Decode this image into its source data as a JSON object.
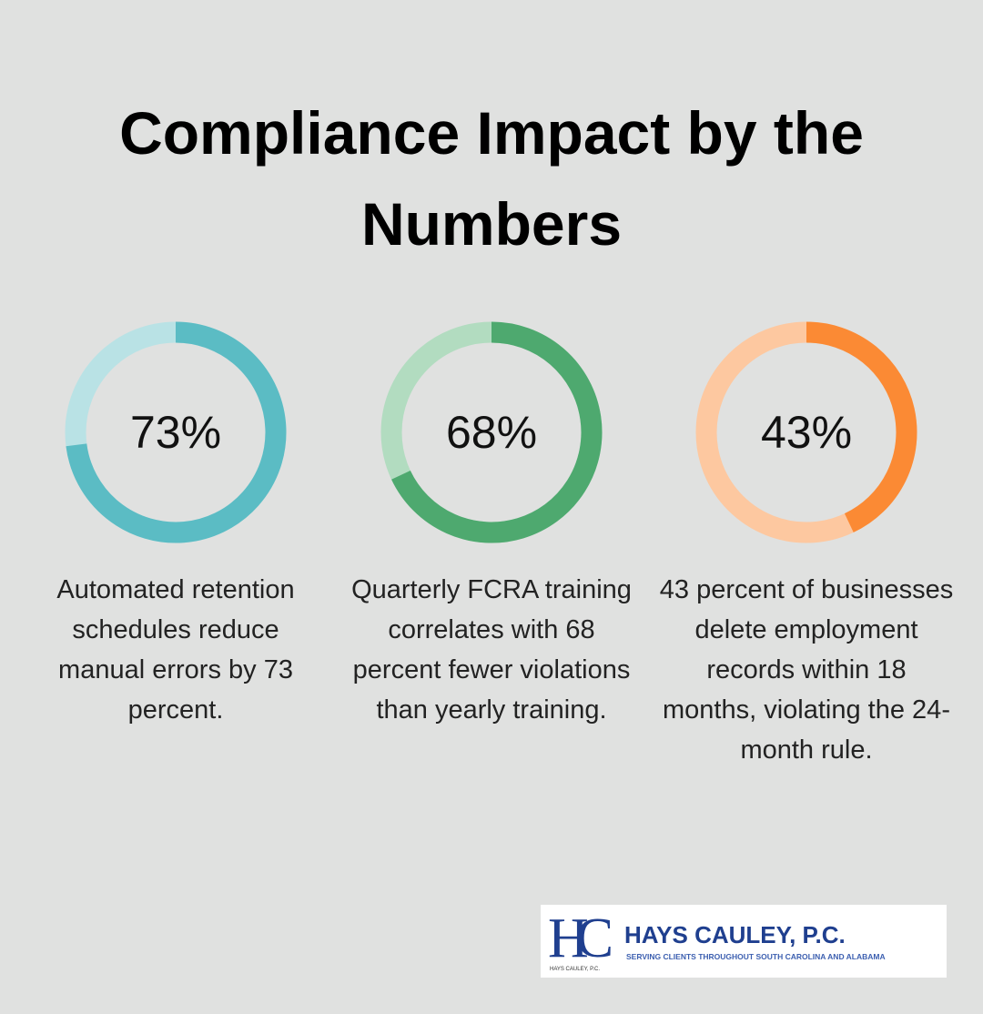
{
  "title": "Compliance Impact by the Numbers",
  "chart_data": [
    {
      "type": "donut",
      "values": [
        73
      ],
      "value_labels": [
        "73%"
      ],
      "color": "#5bbcc4",
      "track_color": "#b9e2e5",
      "description": "Automated retention schedules reduce manual errors by 73 percent."
    },
    {
      "type": "donut",
      "values": [
        68
      ],
      "value_labels": [
        "68%"
      ],
      "color": "#4ea96f",
      "track_color": "#b2dcc0",
      "description": "Quarterly FCRA training correlates with 68 percent fewer violations than yearly training."
    },
    {
      "type": "donut",
      "values": [
        43
      ],
      "value_labels": [
        "43%"
      ],
      "color": "#fb8a34",
      "track_color": "#fdc8a0",
      "description": "43 percent of businesses delete employment records within 18 months, violating the 24-month rule."
    }
  ],
  "logo": {
    "monogram": "HC",
    "name": "HAYS CAULEY, P.C.",
    "tagline": "SERVING CLIENTS THROUGHOUT SOUTH CAROLINA AND ALABAMA",
    "small": "HAYS CAULEY, P.C."
  }
}
